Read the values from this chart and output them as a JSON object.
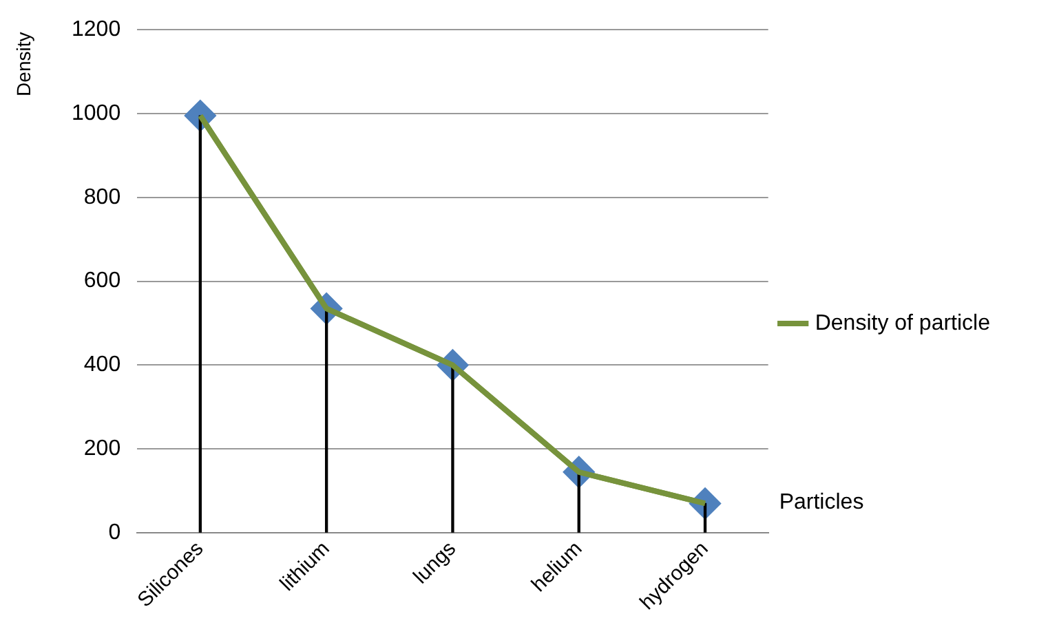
{
  "chart_data": {
    "type": "line",
    "xlabel": "Particles",
    "ylabel": "Density",
    "categories": [
      "Silicones",
      "lithium",
      "lungs",
      "helium",
      "hydrogen"
    ],
    "series": [
      {
        "name": "Density of particle",
        "color": "#77933c",
        "values": [
          995,
          535,
          400,
          145,
          70
        ]
      },
      {
        "type": "bar",
        "color": "#000000",
        "values": [
          995,
          535,
          400,
          145,
          70
        ]
      }
    ],
    "ylim": [
      0,
      1200
    ],
    "yticks": [
      0,
      200,
      400,
      600,
      800,
      1000,
      1200
    ],
    "grid": "y",
    "legend": "right",
    "marker": "diamond",
    "line_style": "solid"
  }
}
